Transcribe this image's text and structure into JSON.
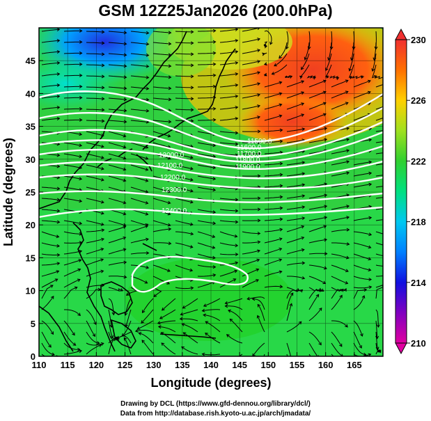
{
  "title": "GSM 12Z25Jan2026 (200.0hPa)",
  "xlabel": "Longitude (degrees)",
  "ylabel": "Latitude  (degrees)",
  "footer_line1": "Drawing by DCL (https://www.gfd-dennou.org/library/dcl/)",
  "footer_line2": "Data from http://database.rish.kyoto-u.ac.jp/arch/jmadata/",
  "x_ticks": [
    "110",
    "115",
    "120",
    "125",
    "130",
    "135",
    "140",
    "145",
    "150",
    "155",
    "160",
    "165"
  ],
  "y_ticks": [
    "0",
    "5",
    "10",
    "15",
    "20",
    "25",
    "30",
    "35",
    "40",
    "45"
  ],
  "colorbar_ticks": [
    "210",
    "214",
    "218",
    "222",
    "226",
    "230"
  ],
  "contour_labels": [
    "11500.0",
    "11600.0",
    "11700.0",
    "11800.0",
    "11900.0",
    "12000.0",
    "12100.0",
    "12200.0",
    "12300.0",
    "12400.0"
  ],
  "chart_data": {
    "type": "heatmap",
    "title": "GSM 12Z25Jan2026 (200.0hPa)",
    "xlabel": "Longitude (degrees)",
    "ylabel": "Latitude  (degrees)",
    "xlim": [
      110,
      170
    ],
    "ylim": [
      0,
      50
    ],
    "colorbar": {
      "min": 210,
      "max": 230,
      "ticks": [
        210,
        214,
        218,
        222,
        226,
        230
      ]
    },
    "field": "temperature (shaded) with streamlines and geopotential height contours",
    "height_contours": [
      {
        "value": 11500.0,
        "label_lon": 149.5,
        "label_lat": 35.0
      },
      {
        "value": 11600.0,
        "label_lon": 149.0,
        "label_lat": 34.2
      },
      {
        "value": 11700.0,
        "label_lon": 148.5,
        "label_lat": 33.3
      },
      {
        "value": 11800.0,
        "label_lon": 148.0,
        "label_lat": 32.4
      },
      {
        "value": 11900.0,
        "label_lon": 147.5,
        "label_lat": 31.5
      },
      {
        "value": 12000.0,
        "label_lon": 131.5,
        "label_lat": 32.5
      },
      {
        "value": 12100.0,
        "label_lon": 131.0,
        "label_lat": 31.0
      },
      {
        "value": 12200.0,
        "label_lon": 132.0,
        "label_lat": 29.0
      },
      {
        "value": 12300.0,
        "label_lon": 133.5,
        "label_lat": 26.8
      },
      {
        "value": 12400.0,
        "label_lon": 134.0,
        "label_lat": 24.0
      }
    ]
  },
  "colors": {
    "colorbar": [
      "#e000a0",
      "#a000c0",
      "#2020e0",
      "#0070ff",
      "#00b4ff",
      "#00e0c0",
      "#00e070",
      "#20d030",
      "#80e030",
      "#d0e020",
      "#ffd000",
      "#ff9000",
      "#ff5010",
      "#f03030"
    ]
  }
}
